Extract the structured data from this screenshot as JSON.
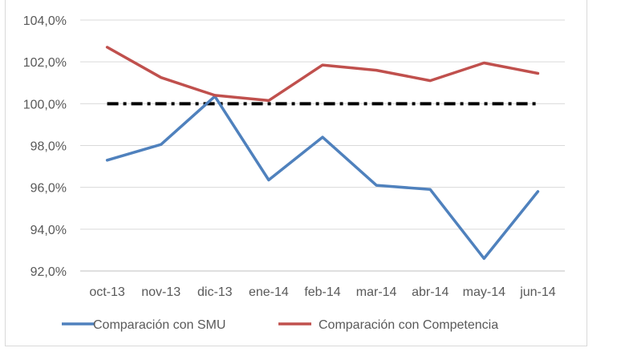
{
  "chart_data": {
    "type": "line",
    "title": "",
    "xlabel": "",
    "ylabel": "",
    "categories": [
      "oct-13",
      "nov-13",
      "dic-13",
      "ene-14",
      "feb-14",
      "mar-14",
      "abr-14",
      "may-14",
      "jun-14"
    ],
    "ylim": [
      92,
      104
    ],
    "yticks": [
      92,
      94,
      96,
      98,
      100,
      102,
      104
    ],
    "ytick_labels": [
      "92,0%",
      "94,0%",
      "96,0%",
      "98,0%",
      "100,0%",
      "102,0%",
      "104,0%"
    ],
    "grid": true,
    "legend_position": "bottom",
    "series": [
      {
        "name": "Comparación con SMU",
        "color": "#4f81bd",
        "values": [
          97.3,
          98.05,
          100.35,
          96.35,
          98.4,
          96.1,
          95.9,
          92.6,
          95.8
        ]
      },
      {
        "name": "Comparación con Competencia",
        "color": "#c0504d",
        "values": [
          102.7,
          101.25,
          100.4,
          100.15,
          101.85,
          101.6,
          101.1,
          101.95,
          101.45
        ]
      }
    ],
    "reference_line": {
      "value": 100,
      "color": "#000000",
      "style": "dash-dot"
    }
  }
}
